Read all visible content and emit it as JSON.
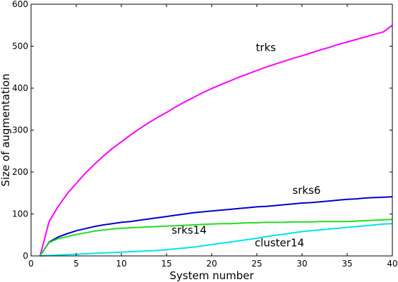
{
  "chart_data": {
    "type": "line",
    "xlabel": "System number",
    "ylabel": "Size of augmentation",
    "xlim": [
      0,
      40
    ],
    "ylim": [
      0,
      600
    ],
    "xticks": [
      0,
      5,
      10,
      15,
      20,
      25,
      30,
      35,
      40
    ],
    "yticks": [
      0,
      100,
      200,
      300,
      400,
      500,
      600
    ],
    "grid": false,
    "legend": "none",
    "series": [
      {
        "name": "trks",
        "color": "#ff00ff",
        "label_at": [
          26,
          488
        ],
        "x": [
          1,
          2,
          3,
          4,
          5,
          6,
          7,
          8,
          9,
          10,
          11,
          12,
          13,
          14,
          15,
          16,
          17,
          18,
          19,
          20,
          21,
          22,
          23,
          24,
          25,
          26,
          27,
          28,
          29,
          30,
          31,
          32,
          33,
          34,
          35,
          36,
          37,
          38,
          39,
          40
        ],
        "y": [
          0,
          82,
          118,
          148,
          173,
          197,
          218,
          238,
          256,
          272,
          288,
          303,
          317,
          330,
          342,
          355,
          367,
          378,
          389,
          399,
          408,
          417,
          426,
          434,
          442,
          450,
          457,
          464,
          471,
          477,
          484,
          491,
          497,
          504,
          510,
          516,
          522,
          528,
          534,
          550
        ]
      },
      {
        "name": "srks6",
        "color": "#0000cc",
        "label_at": [
          30.5,
          148
        ],
        "x": [
          1,
          2,
          3,
          4,
          5,
          6,
          7,
          8,
          9,
          10,
          11,
          12,
          13,
          14,
          15,
          16,
          17,
          18,
          19,
          20,
          21,
          22,
          23,
          24,
          25,
          26,
          27,
          28,
          29,
          30,
          31,
          32,
          33,
          34,
          35,
          36,
          37,
          38,
          39,
          40
        ],
        "y": [
          0,
          33,
          45,
          53,
          60,
          65,
          70,
          74,
          77,
          80,
          82,
          85,
          88,
          91,
          94,
          97,
          100,
          103,
          105,
          107,
          109,
          111,
          113,
          115,
          117,
          118,
          120,
          122,
          124,
          126,
          127,
          129,
          131,
          133,
          135,
          136,
          138,
          139,
          140,
          141
        ]
      },
      {
        "name": "srks14",
        "color": "#22dd22",
        "label_at": [
          17.5,
          53
        ],
        "x": [
          1,
          2,
          3,
          4,
          5,
          6,
          7,
          8,
          9,
          10,
          11,
          12,
          13,
          14,
          15,
          16,
          17,
          18,
          19,
          20,
          21,
          22,
          23,
          24,
          25,
          26,
          27,
          28,
          29,
          30,
          31,
          32,
          33,
          34,
          35,
          36,
          37,
          38,
          39,
          40
        ],
        "y": [
          0,
          32,
          41,
          46,
          51,
          55,
          59,
          62,
          64,
          66,
          67,
          68,
          69,
          70,
          71,
          72,
          73,
          74,
          75,
          76,
          77,
          77,
          78,
          79,
          79,
          80,
          80,
          80,
          81,
          81,
          81,
          82,
          82,
          82,
          82,
          83,
          84,
          85,
          86,
          87
        ]
      },
      {
        "name": "cluster14",
        "color": "#00e5e5",
        "label_at": [
          27.5,
          23
        ],
        "x": [
          1,
          2,
          3,
          4,
          5,
          6,
          7,
          8,
          9,
          10,
          11,
          12,
          13,
          14,
          15,
          16,
          17,
          18,
          19,
          20,
          21,
          22,
          23,
          24,
          25,
          26,
          27,
          28,
          29,
          30,
          31,
          32,
          33,
          34,
          35,
          36,
          37,
          38,
          39,
          40
        ],
        "y": [
          0,
          1,
          2,
          3,
          4,
          5,
          6,
          7,
          8,
          9,
          10,
          11,
          12,
          13,
          15,
          17,
          19,
          21,
          24,
          27,
          30,
          33,
          36,
          39,
          42,
          46,
          49,
          52,
          55,
          58,
          60,
          62,
          64,
          66,
          68,
          70,
          72,
          74,
          76,
          77
        ]
      }
    ]
  }
}
